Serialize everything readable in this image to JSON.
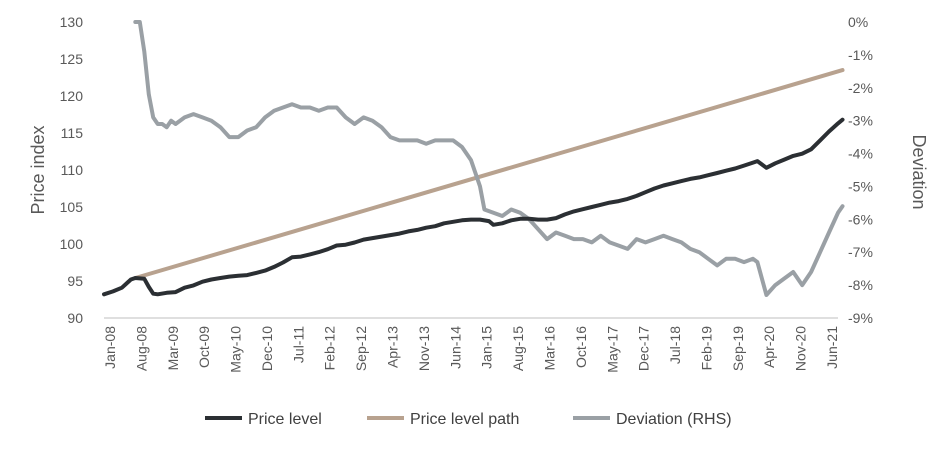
{
  "chart_data": {
    "type": "line",
    "title": "",
    "x_labels": [
      "Jan-08",
      "Aug-08",
      "Mar-09",
      "Oct-09",
      "May-10",
      "Dec-10",
      "Jul-11",
      "Feb-12",
      "Sep-12",
      "Apr-13",
      "Nov-13",
      "Jun-14",
      "Jan-15",
      "Aug-15",
      "Mar-16",
      "Oct-16",
      "May-17",
      "Dec-17",
      "Jul-18",
      "Feb-19",
      "Sep-19",
      "Apr-20",
      "Nov-20",
      "Jun-21"
    ],
    "x_range_months": [
      0,
      164
    ],
    "left_axis": {
      "label": "Price index",
      "min": 90,
      "max": 130,
      "ticks": [
        "90",
        "95",
        "100",
        "105",
        "110",
        "115",
        "120",
        "125",
        "130"
      ]
    },
    "right_axis": {
      "label": "Deviation",
      "min": -9,
      "max": 0,
      "ticks": [
        "0%",
        "-1%",
        "-2%",
        "-3%",
        "-4%",
        "-5%",
        "-6%",
        "-7%",
        "-8%",
        "-9%"
      ]
    },
    "series": [
      {
        "name": "Price level",
        "color": "#2b2f33",
        "axis": "left",
        "points": [
          [
            0,
            93.2
          ],
          [
            2,
            93.6
          ],
          [
            4,
            94.1
          ],
          [
            6,
            95.2
          ],
          [
            7,
            95.4
          ],
          [
            9,
            95.3
          ],
          [
            10,
            94.2
          ],
          [
            11,
            93.3
          ],
          [
            12,
            93.2
          ],
          [
            14,
            93.4
          ],
          [
            16,
            93.5
          ],
          [
            18,
            94.1
          ],
          [
            20,
            94.4
          ],
          [
            22,
            94.9
          ],
          [
            24,
            95.2
          ],
          [
            26,
            95.4
          ],
          [
            28,
            95.6
          ],
          [
            30,
            95.7
          ],
          [
            32,
            95.8
          ],
          [
            34,
            96.1
          ],
          [
            36,
            96.4
          ],
          [
            38,
            96.9
          ],
          [
            40,
            97.5
          ],
          [
            42,
            98.2
          ],
          [
            44,
            98.3
          ],
          [
            46,
            98.6
          ],
          [
            48,
            98.9
          ],
          [
            50,
            99.3
          ],
          [
            52,
            99.8
          ],
          [
            54,
            99.9
          ],
          [
            56,
            100.2
          ],
          [
            58,
            100.6
          ],
          [
            60,
            100.8
          ],
          [
            62,
            101.0
          ],
          [
            64,
            101.2
          ],
          [
            66,
            101.4
          ],
          [
            68,
            101.7
          ],
          [
            70,
            101.9
          ],
          [
            72,
            102.2
          ],
          [
            74,
            102.4
          ],
          [
            76,
            102.8
          ],
          [
            78,
            103.0
          ],
          [
            80,
            103.2
          ],
          [
            82,
            103.3
          ],
          [
            84,
            103.3
          ],
          [
            86,
            103.1
          ],
          [
            87,
            102.6
          ],
          [
            89,
            102.8
          ],
          [
            91,
            103.2
          ],
          [
            93,
            103.4
          ],
          [
            95,
            103.4
          ],
          [
            97,
            103.3
          ],
          [
            99,
            103.3
          ],
          [
            101,
            103.5
          ],
          [
            103,
            104.0
          ],
          [
            105,
            104.4
          ],
          [
            107,
            104.7
          ],
          [
            109,
            105.0
          ],
          [
            111,
            105.3
          ],
          [
            113,
            105.6
          ],
          [
            115,
            105.8
          ],
          [
            117,
            106.1
          ],
          [
            119,
            106.5
          ],
          [
            121,
            107.0
          ],
          [
            123,
            107.5
          ],
          [
            125,
            107.9
          ],
          [
            127,
            108.2
          ],
          [
            129,
            108.5
          ],
          [
            131,
            108.8
          ],
          [
            133,
            109.0
          ],
          [
            135,
            109.3
          ],
          [
            137,
            109.6
          ],
          [
            139,
            109.9
          ],
          [
            141,
            110.2
          ],
          [
            143,
            110.6
          ],
          [
            145,
            111.0
          ],
          [
            146,
            111.2
          ],
          [
            148,
            110.3
          ],
          [
            150,
            110.9
          ],
          [
            152,
            111.4
          ],
          [
            154,
            111.9
          ],
          [
            156,
            112.2
          ],
          [
            158,
            112.8
          ],
          [
            160,
            114.0
          ],
          [
            162,
            115.2
          ],
          [
            164,
            116.3
          ],
          [
            165,
            116.8
          ]
        ]
      },
      {
        "name": "Price level path",
        "color": "#b8a28f",
        "axis": "left",
        "points": [
          [
            7,
            95.4
          ],
          [
            165,
            123.5
          ]
        ]
      },
      {
        "name": "Deviation (RHS)",
        "color": "#9aa0a5",
        "axis": "right",
        "points": [
          [
            7,
            0
          ],
          [
            8,
            0
          ],
          [
            9,
            -0.9
          ],
          [
            10,
            -2.2
          ],
          [
            11,
            -2.9
          ],
          [
            12,
            -3.1
          ],
          [
            13,
            -3.1
          ],
          [
            14,
            -3.2
          ],
          [
            15,
            -3.0
          ],
          [
            16,
            -3.1
          ],
          [
            18,
            -2.9
          ],
          [
            20,
            -2.8
          ],
          [
            22,
            -2.9
          ],
          [
            24,
            -3.0
          ],
          [
            26,
            -3.2
          ],
          [
            28,
            -3.5
          ],
          [
            30,
            -3.5
          ],
          [
            32,
            -3.3
          ],
          [
            34,
            -3.2
          ],
          [
            36,
            -2.9
          ],
          [
            38,
            -2.7
          ],
          [
            40,
            -2.6
          ],
          [
            42,
            -2.5
          ],
          [
            44,
            -2.6
          ],
          [
            46,
            -2.6
          ],
          [
            48,
            -2.7
          ],
          [
            50,
            -2.6
          ],
          [
            52,
            -2.6
          ],
          [
            54,
            -2.9
          ],
          [
            56,
            -3.1
          ],
          [
            58,
            -2.9
          ],
          [
            60,
            -3.0
          ],
          [
            62,
            -3.2
          ],
          [
            64,
            -3.5
          ],
          [
            66,
            -3.6
          ],
          [
            68,
            -3.6
          ],
          [
            70,
            -3.6
          ],
          [
            72,
            -3.7
          ],
          [
            74,
            -3.6
          ],
          [
            76,
            -3.6
          ],
          [
            78,
            -3.6
          ],
          [
            80,
            -3.8
          ],
          [
            82,
            -4.2
          ],
          [
            84,
            -5.0
          ],
          [
            85,
            -5.7
          ],
          [
            87,
            -5.8
          ],
          [
            89,
            -5.9
          ],
          [
            91,
            -5.7
          ],
          [
            93,
            -5.8
          ],
          [
            95,
            -6.0
          ],
          [
            97,
            -6.3
          ],
          [
            99,
            -6.6
          ],
          [
            101,
            -6.4
          ],
          [
            103,
            -6.5
          ],
          [
            105,
            -6.6
          ],
          [
            107,
            -6.6
          ],
          [
            109,
            -6.7
          ],
          [
            111,
            -6.5
          ],
          [
            113,
            -6.7
          ],
          [
            115,
            -6.8
          ],
          [
            117,
            -6.9
          ],
          [
            119,
            -6.6
          ],
          [
            121,
            -6.7
          ],
          [
            123,
            -6.6
          ],
          [
            125,
            -6.5
          ],
          [
            127,
            -6.6
          ],
          [
            129,
            -6.7
          ],
          [
            131,
            -6.9
          ],
          [
            133,
            -7.0
          ],
          [
            135,
            -7.2
          ],
          [
            137,
            -7.4
          ],
          [
            139,
            -7.2
          ],
          [
            141,
            -7.2
          ],
          [
            143,
            -7.3
          ],
          [
            145,
            -7.2
          ],
          [
            146,
            -7.3
          ],
          [
            148,
            -8.3
          ],
          [
            150,
            -8.0
          ],
          [
            152,
            -7.8
          ],
          [
            154,
            -7.6
          ],
          [
            156,
            -8.0
          ],
          [
            158,
            -7.6
          ],
          [
            160,
            -7.0
          ],
          [
            162,
            -6.4
          ],
          [
            164,
            -5.8
          ],
          [
            165,
            -5.6
          ]
        ]
      }
    ],
    "legend_position": "bottom",
    "grid": false
  }
}
